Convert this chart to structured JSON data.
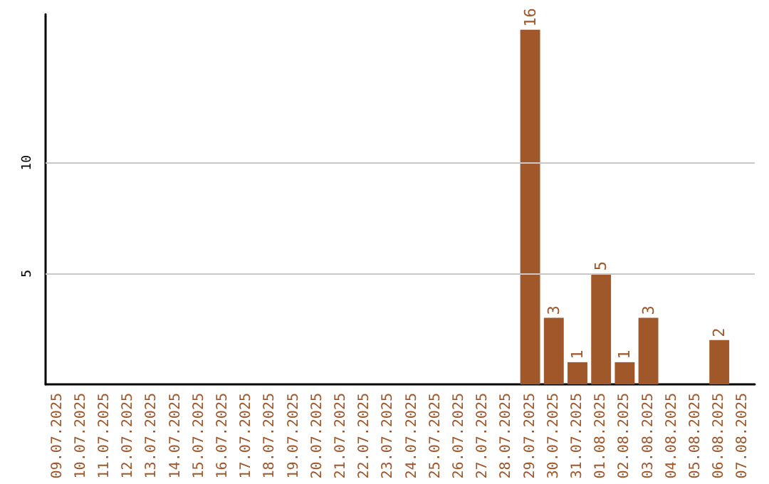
{
  "chart_data": {
    "type": "bar",
    "categories": [
      "09.07.2025",
      "10.07.2025",
      "11.07.2025",
      "12.07.2025",
      "13.07.2025",
      "14.07.2025",
      "15.07.2025",
      "16.07.2025",
      "17.07.2025",
      "18.07.2025",
      "19.07.2025",
      "20.07.2025",
      "21.07.2025",
      "22.07.2025",
      "23.07.2025",
      "24.07.2025",
      "25.07.2025",
      "26.07.2025",
      "27.07.2025",
      "28.07.2025",
      "29.07.2025",
      "30.07.2025",
      "31.07.2025",
      "01.08.2025",
      "02.08.2025",
      "03.08.2025",
      "04.08.2025",
      "05.08.2025",
      "06.08.2025",
      "07.08.2025"
    ],
    "values": [
      0,
      0,
      0,
      0,
      0,
      0,
      0,
      0,
      0,
      0,
      0,
      0,
      0,
      0,
      0,
      0,
      0,
      0,
      0,
      0,
      16,
      3,
      1,
      5,
      1,
      3,
      0,
      0,
      2,
      0
    ],
    "value_labels": [
      null,
      null,
      null,
      null,
      null,
      null,
      null,
      null,
      null,
      null,
      null,
      null,
      null,
      null,
      null,
      null,
      null,
      null,
      null,
      null,
      "16",
      "3",
      "1",
      "5",
      "1",
      "3",
      null,
      null,
      "2",
      null
    ],
    "color": "#a0572a",
    "ylim": [
      0,
      16.7
    ],
    "yticks": [
      5,
      10
    ],
    "grid": "y"
  }
}
